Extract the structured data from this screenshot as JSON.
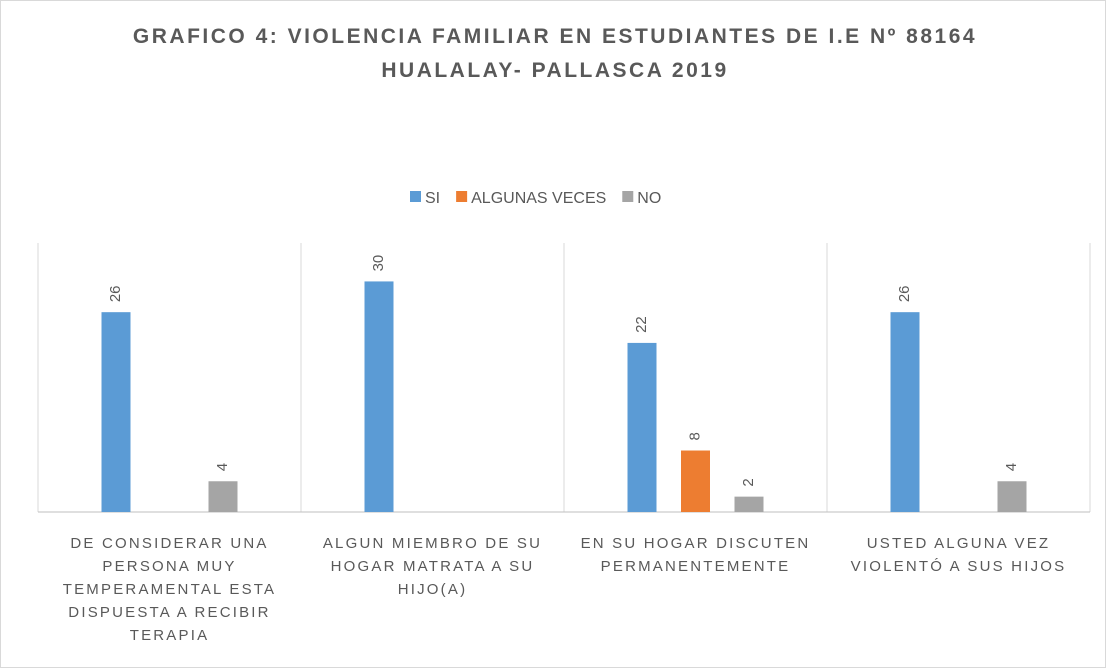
{
  "chart_data": {
    "type": "bar",
    "title": "GRAFICO 4: VIOLENCIA FAMILIAR EN ESTUDIANTES DE I.E Nº 88164 HUALALAY- PALLASCA 2019",
    "categories": [
      "DE CONSIDERAR UNA PERSONA MUY TEMPERAMENTAL ESTA DISPUESTA A RECIBIR TERAPIA",
      "ALGUN MIEMBRO DE SU HOGAR MATRATA A SU HIJO(A)",
      "EN SU HOGAR DISCUTEN PERMANENTEMENTE",
      "USTED ALGUNA VEZ VIOLENTÓ A SUS HIJOS"
    ],
    "series": [
      {
        "name": "SI",
        "color": "#5b9bd5",
        "values": [
          26,
          30,
          22,
          26
        ]
      },
      {
        "name": "ALGUNAS VECES",
        "color": "#ed7d31",
        "values": [
          null,
          null,
          8,
          null
        ]
      },
      {
        "name": "NO",
        "color": "#a5a5a5",
        "values": [
          4,
          null,
          2,
          4
        ]
      }
    ],
    "ylim": [
      0,
      35
    ],
    "legend": "top"
  }
}
